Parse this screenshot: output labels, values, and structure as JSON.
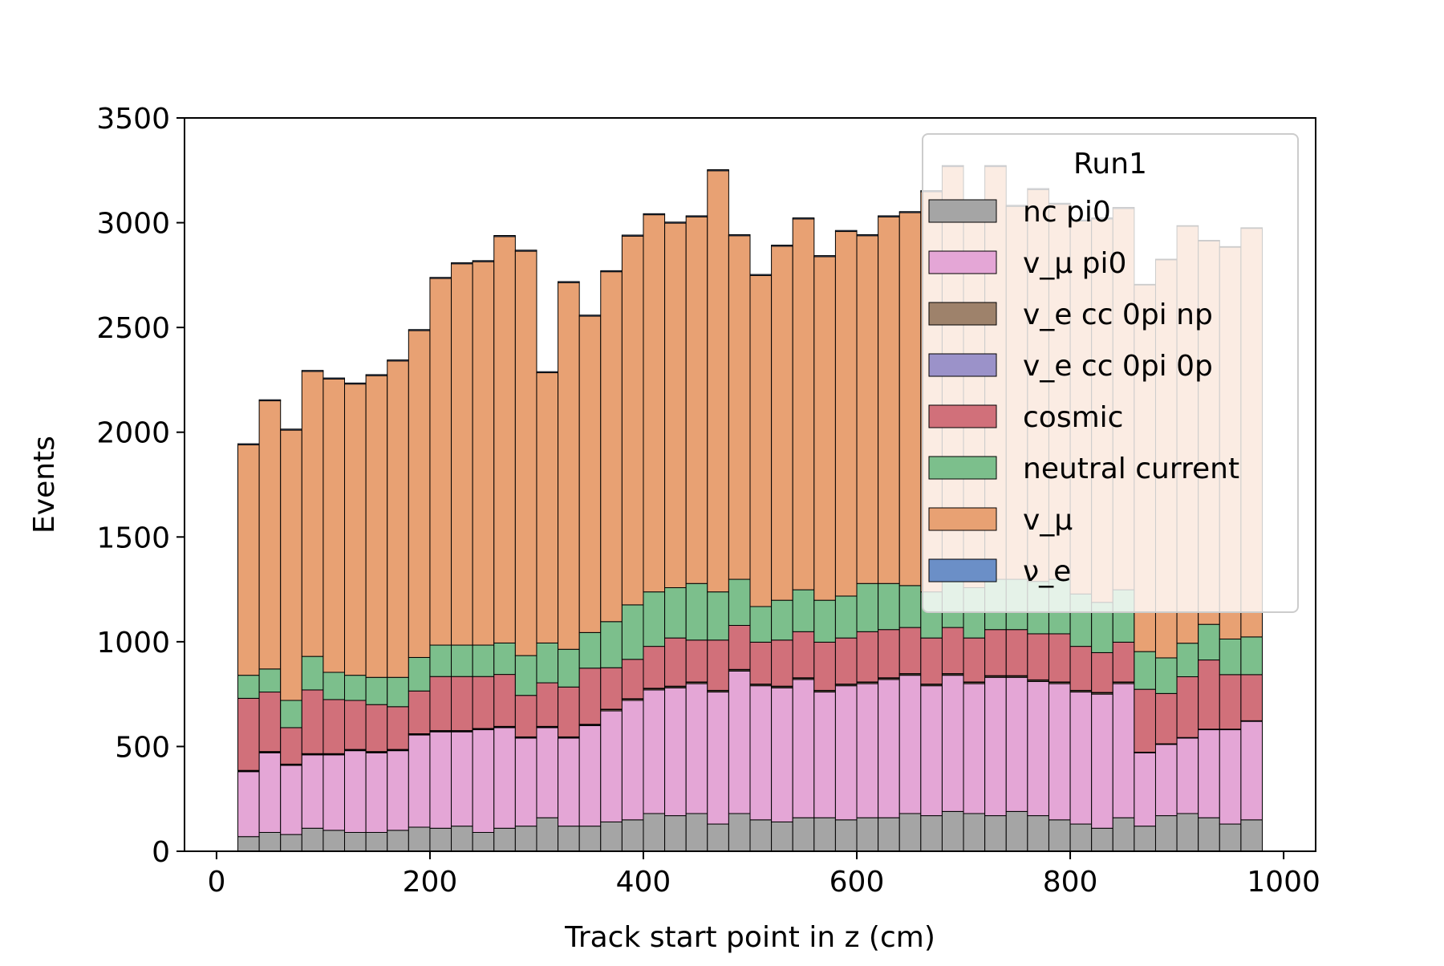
{
  "chart_data": {
    "type": "bar",
    "stacked": true,
    "histogram": true,
    "xlabel": "Track start point in z (cm)",
    "ylabel": "Events",
    "xlim": [
      -30,
      1030
    ],
    "ylim": [
      0,
      3500
    ],
    "xticks": [
      0,
      200,
      400,
      600,
      800,
      1000
    ],
    "yticks": [
      0,
      500,
      1000,
      1500,
      2000,
      2500,
      3000,
      3500
    ],
    "bin_edges": [
      20,
      40,
      60,
      80,
      100,
      120,
      140,
      160,
      180,
      200,
      220,
      240,
      260,
      280,
      300,
      320,
      340,
      360,
      380,
      400,
      420,
      440,
      460,
      480,
      500,
      520,
      540,
      560,
      580,
      600,
      620,
      640,
      660,
      680,
      700,
      720,
      740,
      760,
      780,
      800,
      820,
      840,
      860,
      880,
      900,
      920,
      940,
      960,
      980
    ],
    "grid": false,
    "legend": {
      "title": "Run1",
      "position": "upper-right",
      "entries": [
        "nc pi0",
        "v_μ pi0",
        "v_e cc 0pi np",
        "v_e cc 0pi 0p",
        "cosmic",
        "neutral current",
        "v_μ",
        "ν_e"
      ]
    },
    "series": [
      {
        "name": "nc pi0",
        "color": "#a5a5a5",
        "values": [
          70,
          90,
          80,
          110,
          100,
          90,
          90,
          100,
          115,
          110,
          120,
          90,
          110,
          120,
          160,
          120,
          120,
          140,
          150,
          180,
          170,
          180,
          130,
          180,
          150,
          140,
          160,
          160,
          150,
          160,
          160,
          180,
          170,
          190,
          180,
          170,
          190,
          170,
          150,
          130,
          110,
          160,
          120,
          170,
          180,
          160,
          130,
          150
        ]
      },
      {
        "name": "v_μ pi0",
        "color": "#e4a6d6",
        "values": [
          310,
          380,
          330,
          350,
          360,
          390,
          380,
          380,
          440,
          460,
          450,
          490,
          480,
          420,
          430,
          420,
          480,
          530,
          570,
          590,
          610,
          620,
          630,
          680,
          640,
          640,
          660,
          600,
          640,
          640,
          660,
          660,
          620,
          650,
          620,
          660,
          640,
          640,
          650,
          630,
          640,
          640,
          350,
          340,
          360,
          420,
          450,
          470
        ]
      },
      {
        "name": "v_e cc 0pi np",
        "color": "#9e826b",
        "values": [
          4,
          4,
          4,
          4,
          4,
          4,
          4,
          4,
          4,
          4,
          4,
          4,
          4,
          4,
          4,
          4,
          4,
          6,
          6,
          6,
          6,
          6,
          6,
          6,
          6,
          6,
          6,
          6,
          6,
          6,
          6,
          6,
          6,
          6,
          6,
          6,
          6,
          6,
          6,
          6,
          6,
          6,
          2,
          2,
          2,
          2,
          2,
          2
        ]
      },
      {
        "name": "v_e cc 0pi 0p",
        "color": "#9b92c9",
        "values": [
          2,
          2,
          2,
          2,
          2,
          2,
          2,
          2,
          2,
          2,
          2,
          2,
          2,
          2,
          2,
          2,
          2,
          2,
          2,
          2,
          2,
          2,
          2,
          2,
          2,
          2,
          2,
          2,
          2,
          2,
          2,
          2,
          2,
          2,
          2,
          2,
          2,
          2,
          2,
          2,
          2,
          2,
          1,
          1,
          1,
          1,
          1,
          1
        ]
      },
      {
        "name": "cosmic",
        "color": "#d1707a",
        "values": [
          344,
          284,
          174,
          304,
          258,
          234,
          224,
          204,
          204,
          258,
          258,
          248,
          248,
          198,
          208,
          238,
          268,
          198,
          188,
          200,
          230,
          200,
          240,
          210,
          200,
          220,
          220,
          230,
          220,
          240,
          230,
          220,
          220,
          220,
          210,
          220,
          220,
          220,
          230,
          210,
          190,
          190,
          300,
          240,
          290,
          330,
          260,
          220
        ]
      },
      {
        "name": "neutral current",
        "color": "#7cbf8c",
        "values": [
          110,
          110,
          130,
          160,
          130,
          120,
          130,
          140,
          160,
          150,
          150,
          150,
          150,
          190,
          190,
          180,
          170,
          220,
          260,
          260,
          240,
          270,
          230,
          220,
          170,
          190,
          200,
          200,
          200,
          230,
          220,
          200,
          220,
          230,
          240,
          240,
          240,
          250,
          260,
          250,
          240,
          250,
          180,
          170,
          160,
          170,
          170,
          180
        ]
      },
      {
        "name": "v_μ",
        "color": "#e8a173",
        "values": [
          1100,
          1280,
          1290,
          1360,
          1400,
          1390,
          1440,
          1510,
          1560,
          1750,
          1820,
          1830,
          1940,
          1930,
          1290,
          1750,
          1510,
          1670,
          1760,
          1800,
          1740,
          1750,
          2010,
          1640,
          1580,
          1690,
          1770,
          1640,
          1740,
          1660,
          1750,
          1780,
          1910,
          1970,
          1810,
          1970,
          1780,
          1870,
          1790,
          1780,
          1830,
          1820,
          1750,
          1900,
          1990,
          1830,
          1870,
          1950
        ]
      },
      {
        "name": "ν_e",
        "color": "#6b8fc7",
        "values": [
          5,
          5,
          5,
          5,
          5,
          5,
          5,
          5,
          5,
          5,
          5,
          5,
          5,
          5,
          5,
          5,
          5,
          5,
          5,
          5,
          5,
          5,
          5,
          5,
          5,
          5,
          5,
          5,
          5,
          5,
          5,
          5,
          5,
          5,
          5,
          5,
          5,
          5,
          5,
          5,
          5,
          5,
          3,
          3,
          3,
          3,
          3,
          3
        ]
      }
    ]
  }
}
